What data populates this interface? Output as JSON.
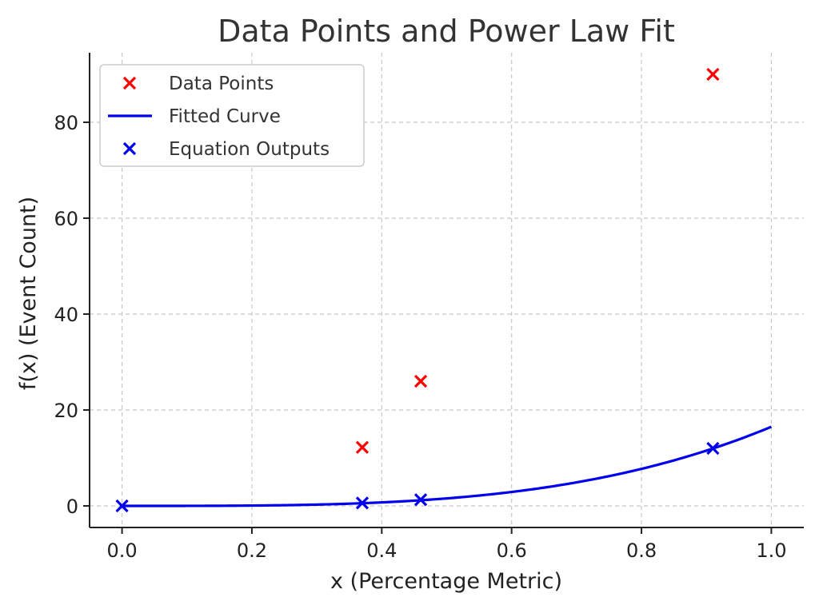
{
  "chart_data": {
    "type": "scatter",
    "title": "Data Points and Power Law Fit",
    "xlabel": "x (Percentage Metric)",
    "ylabel": "f(x) (Event Count)",
    "xlim": [
      -0.05,
      1.05
    ],
    "ylim": [
      -4.5,
      94.5
    ],
    "xticks": [
      0.0,
      0.2,
      0.4,
      0.6,
      0.8,
      1.0
    ],
    "xtick_labels": [
      "0.0",
      "0.2",
      "0.4",
      "0.6",
      "0.8",
      "1.0"
    ],
    "yticks": [
      0,
      20,
      40,
      60,
      80
    ],
    "ytick_labels": [
      "0",
      "20",
      "40",
      "60",
      "80"
    ],
    "grid": true,
    "legend_position": "top-left",
    "series": [
      {
        "name": "Data Points",
        "kind": "scatter",
        "marker": "x",
        "color": "#ff0000",
        "x": [
          0.37,
          0.46,
          0.91
        ],
        "y": [
          12.2,
          26.0,
          90.0
        ]
      },
      {
        "name": "Fitted Curve",
        "kind": "line",
        "color": "#0000ee",
        "function": "power_law",
        "coefficient": 16.5,
        "exponent": 3.4,
        "x_range": [
          0.0,
          1.0
        ]
      },
      {
        "name": "Equation Outputs",
        "kind": "scatter",
        "marker": "x",
        "color": "#0000ee",
        "x": [
          0.0,
          0.37,
          0.46,
          0.91
        ],
        "y": [
          0.0,
          0.6,
          1.3,
          12.0
        ]
      }
    ]
  }
}
